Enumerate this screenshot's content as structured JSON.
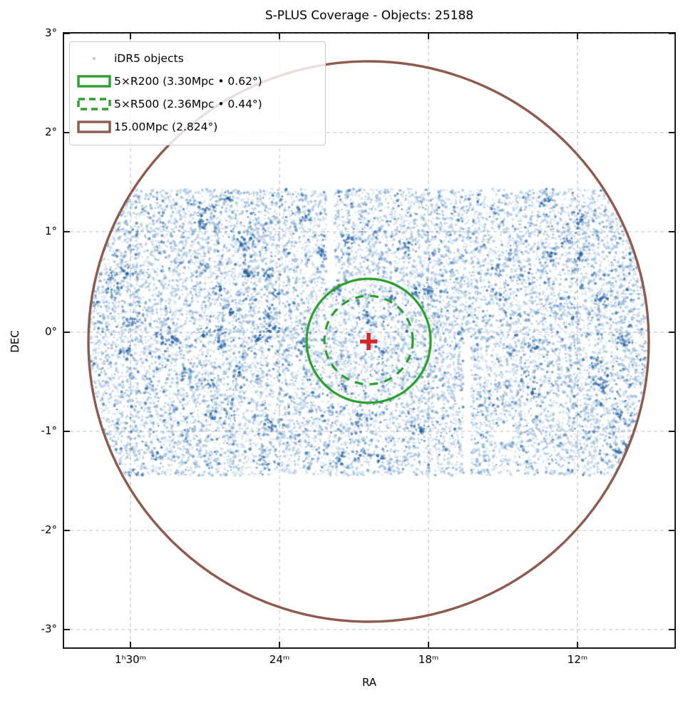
{
  "figure": {
    "title": "S-PLUS Coverage - Objects: 25188",
    "xlabel": "RA",
    "ylabel": "DEC"
  },
  "axes": {
    "x_ticks": [
      "1ʰ30ᵐ",
      "24ᵐ",
      "18ᵐ",
      "12ᵐ"
    ],
    "y_ticks": [
      "3°",
      "2°",
      "1°",
      "0°",
      "-1°",
      "-2°",
      "-3°"
    ]
  },
  "legend": {
    "entries": [
      {
        "label": "iDR5 objects",
        "marker": "point",
        "color": "#a8c8e0"
      },
      {
        "label": "5×R200 (3.30Mpc • 0.62°)",
        "marker": "rect-solid",
        "color": "#2ca02c"
      },
      {
        "label": "5×R500 (2.36Mpc • 0.44°)",
        "marker": "rect-dashed",
        "color": "#2ca02c"
      },
      {
        "label": "15.00Mpc (2.824°)",
        "marker": "rect-solid",
        "color": "#8f5a4e"
      }
    ]
  },
  "chart_data": {
    "type": "scatter",
    "title": "S-PLUS Coverage - Objects: 25188",
    "xlabel": "RA",
    "ylabel": "DEC",
    "x_tick_labels": [
      "1ʰ30ᵐ",
      "24ᵐ",
      "18ᵐ",
      "12ᵐ"
    ],
    "x_tick_ra_minutes": [
      90,
      84,
      78,
      72
    ],
    "y_tick_labels": [
      "3°",
      "2°",
      "1°",
      "0°",
      "-1°",
      "-2°",
      "-3°"
    ],
    "y_tick_deg": [
      3,
      2,
      1,
      0,
      -1,
      -2,
      -3
    ],
    "grid": true,
    "legend_position": "upper left",
    "series": [
      {
        "name": "iDR5 objects",
        "marker": "point",
        "count": 25188,
        "color": "#3e7cb7",
        "point_rgb": [
          62,
          124,
          183
        ],
        "point_rgb_dark": [
          28,
          92,
          158
        ],
        "coverage_dec_band_deg": [
          -1.44,
          1.44
        ],
        "coverage_radius_deg": 2.824
      }
    ],
    "overlays": [
      {
        "name": "5×R200",
        "label": "5×R200 (3.30Mpc • 0.62°)",
        "radius_mpc": 3.3,
        "radius_deg": 0.62,
        "line": "solid",
        "color": "#2ca02c"
      },
      {
        "name": "5×R500",
        "label": "5×R500 (2.36Mpc • 0.44°)",
        "radius_mpc": 2.36,
        "radius_deg": 0.44,
        "line": "dashed",
        "color": "#2ca02c"
      },
      {
        "name": "15.00Mpc",
        "label": "15.00Mpc (2.824°)",
        "radius_mpc": 15.0,
        "radius_deg": 2.824,
        "line": "solid",
        "color": "#8f5a4e"
      },
      {
        "name": "cluster-center",
        "marker": "plus",
        "color": "#d62728",
        "center_dec_deg": -0.09
      }
    ]
  }
}
